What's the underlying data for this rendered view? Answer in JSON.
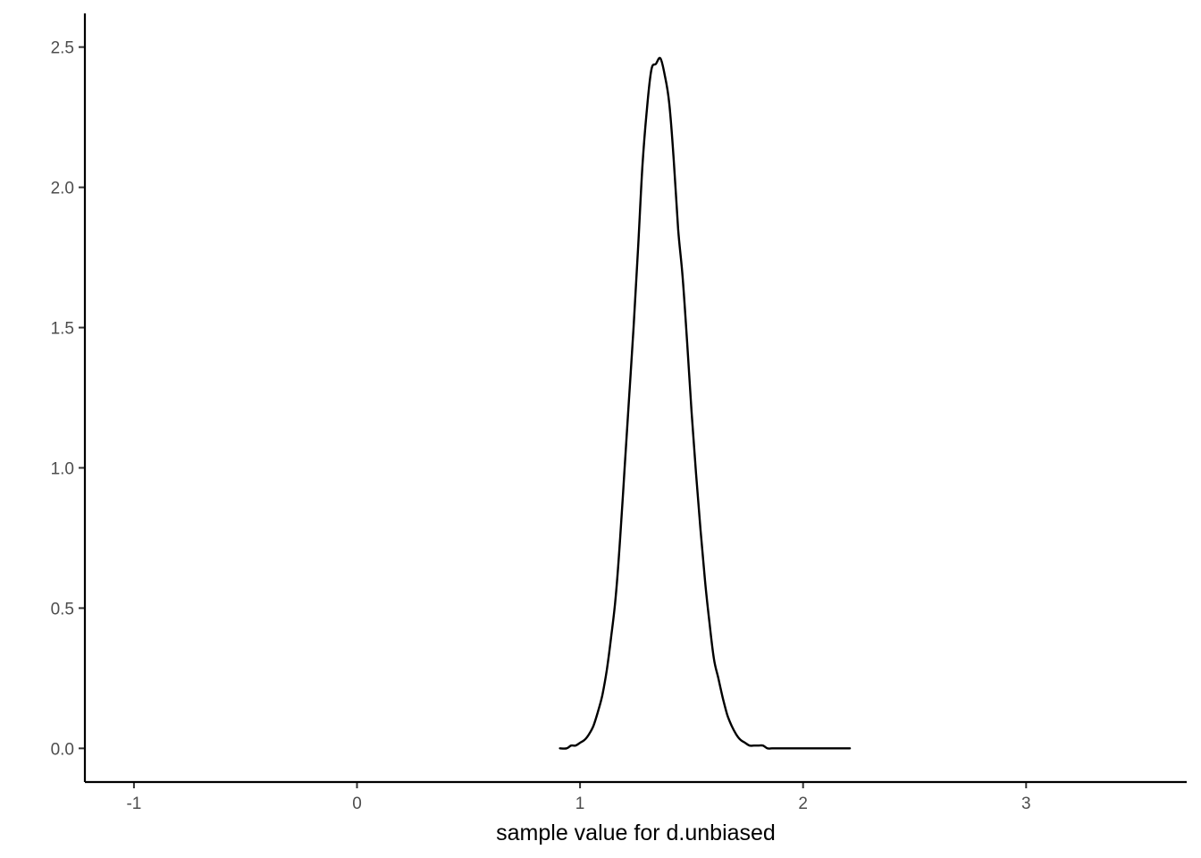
{
  "chart_data": {
    "type": "line",
    "title": "",
    "xlabel": "sample value for d.unbiased",
    "ylabel": "",
    "xlim": [
      -1.22,
      3.72
    ],
    "ylim": [
      -0.12,
      2.62
    ],
    "x_ticks": [
      {
        "value": -1,
        "label": "-1"
      },
      {
        "value": 0,
        "label": "0"
      },
      {
        "value": 1,
        "label": "1"
      },
      {
        "value": 2,
        "label": "2"
      },
      {
        "value": 3,
        "label": "3"
      }
    ],
    "y_ticks": [
      {
        "value": 0.0,
        "label": "0.0"
      },
      {
        "value": 0.5,
        "label": "0.5"
      },
      {
        "value": 1.0,
        "label": "1.0"
      },
      {
        "value": 1.5,
        "label": "1.5"
      },
      {
        "value": 2.0,
        "label": "2.0"
      },
      {
        "value": 2.5,
        "label": "2.5"
      }
    ],
    "grid": false,
    "legend": "none",
    "line_color": "#000000",
    "series": [
      {
        "x": [
          0.91,
          0.94,
          0.96,
          0.98,
          1.0,
          1.02,
          1.04,
          1.06,
          1.08,
          1.1,
          1.12,
          1.14,
          1.16,
          1.18,
          1.2,
          1.22,
          1.24,
          1.26,
          1.28,
          1.3,
          1.32,
          1.34,
          1.36,
          1.38,
          1.4,
          1.42,
          1.44,
          1.46,
          1.48,
          1.5,
          1.52,
          1.54,
          1.56,
          1.58,
          1.6,
          1.62,
          1.64,
          1.66,
          1.68,
          1.7,
          1.72,
          1.74,
          1.76,
          1.78,
          1.8,
          1.82,
          1.84,
          1.86,
          1.88,
          1.9,
          1.92,
          1.94,
          1.96,
          1.98,
          2.0,
          2.02,
          2.04,
          2.06,
          2.1,
          2.15,
          2.21
        ],
        "y": [
          0.0,
          0.0,
          0.01,
          0.01,
          0.02,
          0.03,
          0.05,
          0.08,
          0.13,
          0.19,
          0.28,
          0.4,
          0.54,
          0.75,
          1.0,
          1.25,
          1.5,
          1.78,
          2.08,
          2.28,
          2.42,
          2.44,
          2.46,
          2.4,
          2.3,
          2.1,
          1.85,
          1.68,
          1.45,
          1.2,
          0.98,
          0.78,
          0.6,
          0.45,
          0.32,
          0.25,
          0.18,
          0.12,
          0.08,
          0.05,
          0.03,
          0.02,
          0.01,
          0.01,
          0.01,
          0.01,
          0.0,
          0.0,
          0.0,
          0.0,
          0.0,
          0.0,
          0.0,
          0.0,
          0.0,
          0.0,
          0.0,
          0.0,
          0.0,
          0.0,
          0.0
        ]
      }
    ]
  }
}
